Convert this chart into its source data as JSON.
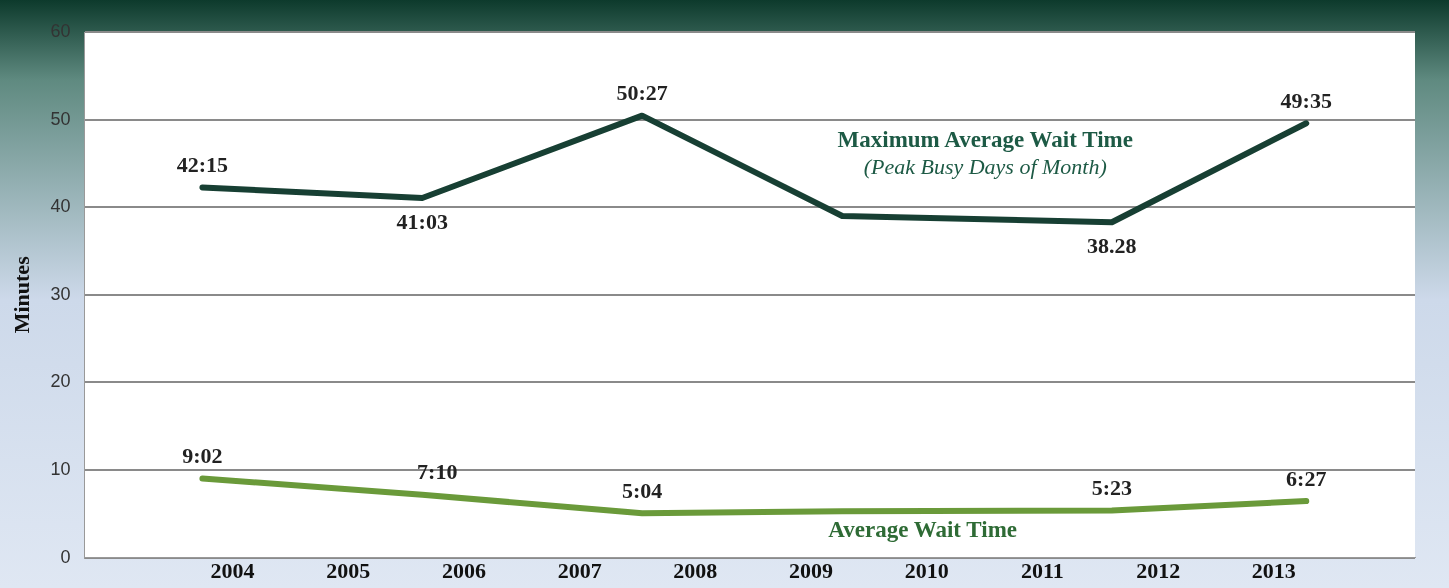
{
  "chart_data": {
    "type": "line",
    "ylabel": "Minutes",
    "x": [
      2003.74,
      2005.64,
      2007.54,
      2009.27,
      2011.6,
      2013.28
    ],
    "xlim": [
      2002.72,
      2014.22
    ],
    "xticks": [
      2004,
      2005,
      2006,
      2007,
      2008,
      2009,
      2010,
      2011,
      2012,
      2013
    ],
    "ylim": [
      0,
      60
    ],
    "yticks": [
      0,
      10,
      20,
      30,
      40,
      50,
      60
    ],
    "grid": "y",
    "legend": false,
    "marker": "none",
    "line_style": "solid",
    "series": [
      {
        "name": "Maximum Average Wait Time",
        "color": "#173f33",
        "values": [
          42.25,
          41.05,
          50.45,
          39,
          38.28,
          49.58
        ],
        "value_labels": [
          "42:15",
          "41:03",
          "50:27",
          null,
          "38.28",
          "49:35"
        ]
      },
      {
        "name": "Average Wait Time",
        "color": "#6a9a3a",
        "values": [
          9.03,
          7.17,
          5.07,
          5.3,
          5.38,
          6.45
        ],
        "value_labels": [
          "9:02",
          "7:10",
          "5:04",
          null,
          "5:23",
          "6:27"
        ]
      }
    ],
    "annotations": [
      "(Peak Busy Days of Month)"
    ]
  }
}
